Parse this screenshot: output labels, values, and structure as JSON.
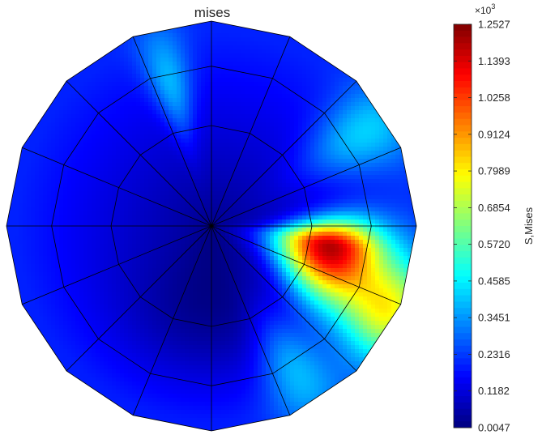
{
  "chart_data": {
    "type": "heatmap",
    "title": "mises",
    "mesh": {
      "shape": "polygon",
      "sides": 16,
      "rings": 3,
      "edge_color": "#000000"
    },
    "colorbar": {
      "label": "S,Mises",
      "colormap": "jet",
      "min": 4.7,
      "max": 1252.7,
      "exponent_label": "×10",
      "exponent_power": "3",
      "ticks": [
        "1.2527",
        "1.1393",
        "1.0258",
        "0.9124",
        "0.7989",
        "0.6854",
        "0.5720",
        "0.4585",
        "0.3451",
        "0.2316",
        "0.1182",
        "0.0047"
      ],
      "tick_values": [
        1252.7,
        1139.3,
        1025.8,
        912.4,
        798.9,
        685.4,
        572.0,
        458.5,
        345.1,
        231.6,
        118.2,
        4.7
      ]
    },
    "field": {
      "peak_value": 1252.7,
      "peak_angle_deg": -10,
      "description_values": {
        "center": 20,
        "hot_lobe_max": 1252.7,
        "top_spike_max": 420,
        "background_outer": 200
      }
    }
  }
}
